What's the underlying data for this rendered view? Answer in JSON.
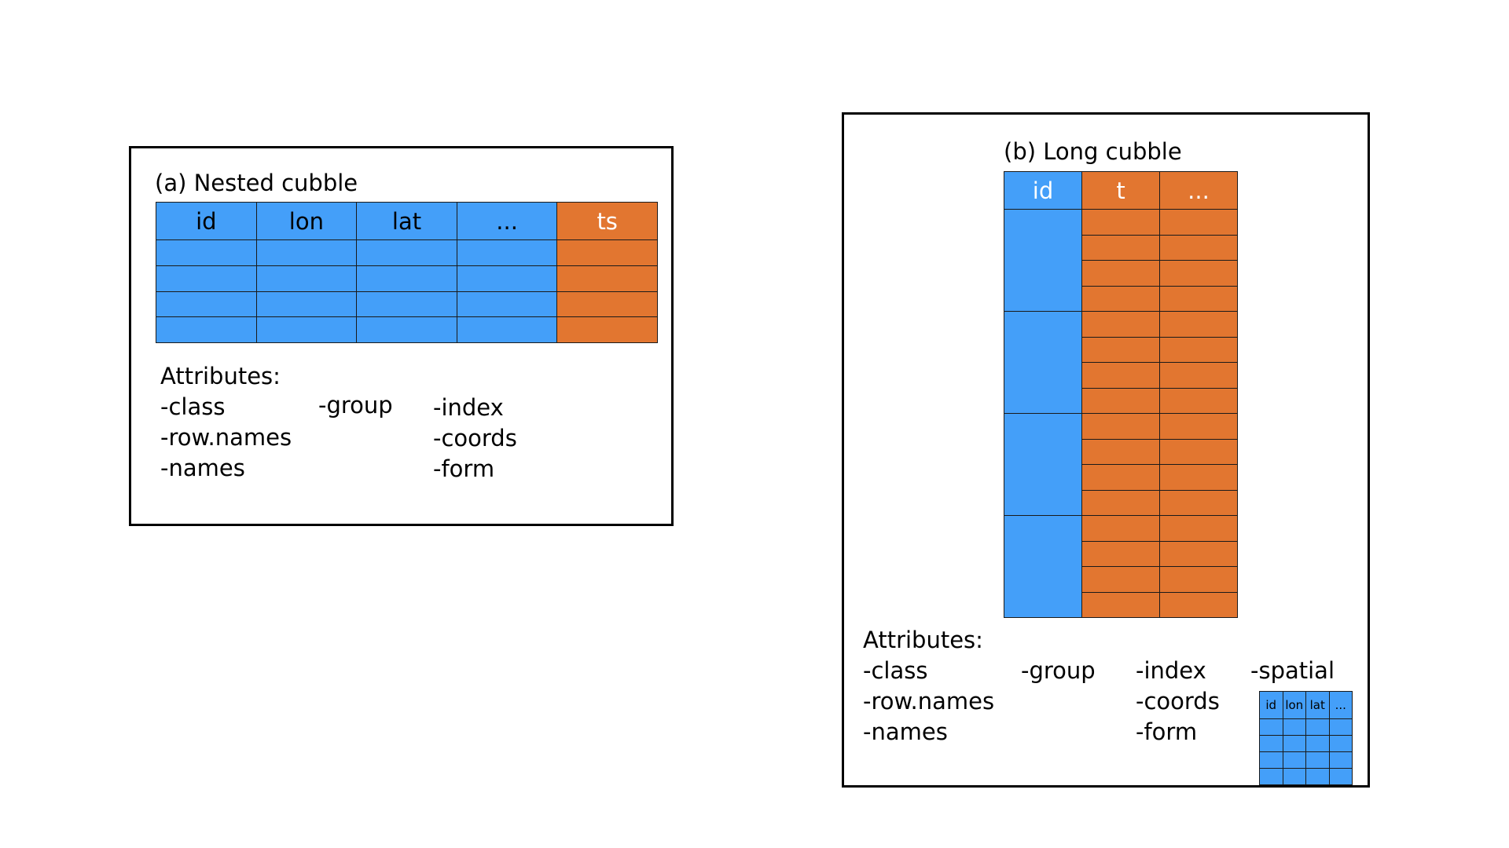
{
  "panel_a": {
    "title": "(a) Nested cubble",
    "columns": [
      "id",
      "lon",
      "lat",
      "...",
      "ts"
    ],
    "data_rows": 4,
    "attributes": {
      "heading": "Attributes:",
      "col1": [
        "-class",
        "-row.names",
        "-names"
      ],
      "col2": [
        "-group"
      ],
      "col3": [
        "-index",
        "-coords",
        "-form"
      ]
    }
  },
  "panel_b": {
    "title": "(b) Long cubble",
    "columns": [
      "id",
      "t",
      "..."
    ],
    "id_groups": 4,
    "rows_per_group": 4,
    "attributes": {
      "heading": "Attributes:",
      "col1": [
        "-class",
        "-row.names",
        "-names"
      ],
      "col2": [
        "-group"
      ],
      "col3": [
        "-index",
        "-coords",
        "-form"
      ],
      "col4": [
        "-spatial"
      ]
    },
    "spatial_table": {
      "columns": [
        "id",
        "lon",
        "lat",
        "..."
      ],
      "data_rows": 4
    }
  },
  "colors": {
    "blue": "#449ff9",
    "orange": "#e27630"
  }
}
